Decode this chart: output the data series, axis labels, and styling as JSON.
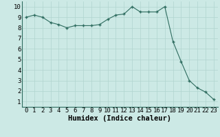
{
  "x": [
    0,
    1,
    2,
    3,
    4,
    5,
    6,
    7,
    8,
    9,
    10,
    11,
    12,
    13,
    14,
    15,
    16,
    17,
    18,
    19,
    20,
    21,
    22,
    23
  ],
  "y": [
    9.0,
    9.2,
    9.0,
    8.5,
    8.3,
    8.0,
    8.2,
    8.2,
    8.2,
    8.3,
    8.8,
    9.2,
    9.3,
    10.0,
    9.5,
    9.5,
    9.5,
    10.0,
    6.7,
    4.8,
    3.0,
    2.3,
    1.9,
    1.2
  ],
  "line_color": "#2d6b5e",
  "marker_color": "#2d6b5e",
  "bg_color": "#cce9e5",
  "grid_color": "#b0d4cf",
  "xlabel": "Humidex (Indice chaleur)",
  "xlim": [
    -0.5,
    23.5
  ],
  "ylim": [
    0.5,
    10.5
  ],
  "yticks": [
    1,
    2,
    3,
    4,
    5,
    6,
    7,
    8,
    9,
    10
  ],
  "xticks": [
    0,
    1,
    2,
    3,
    4,
    5,
    6,
    7,
    8,
    9,
    10,
    11,
    12,
    13,
    14,
    15,
    16,
    17,
    18,
    19,
    20,
    21,
    22,
    23
  ],
  "xlabel_fontsize": 7.5,
  "tick_fontsize": 6.5
}
